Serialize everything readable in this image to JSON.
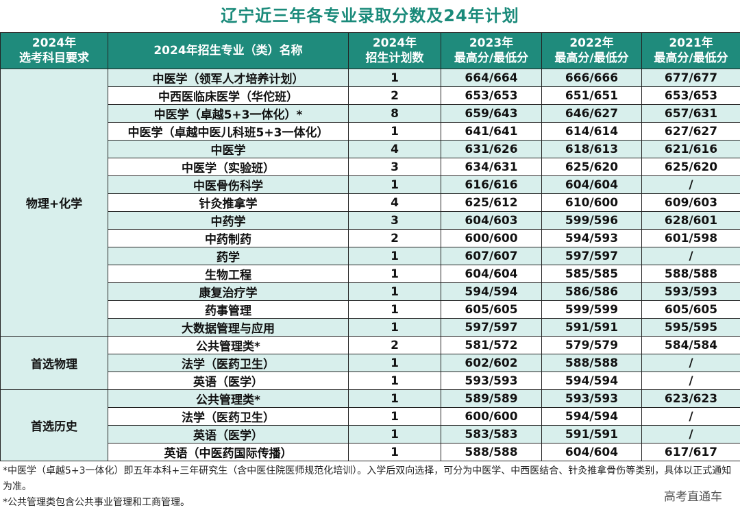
{
  "title": "辽宁近三年各专业录取分数及24年计划",
  "header": {
    "col1": [
      "2024年",
      "选考科目要求"
    ],
    "col2": "2024年招生专业（类）名称",
    "col3": [
      "2024年",
      "招生计划数"
    ],
    "col4": [
      "2023年",
      "最高分/最低分"
    ],
    "col5": [
      "2022年",
      "最高分/最低分"
    ],
    "col6": [
      "2021年",
      "最高分/最低分"
    ]
  },
  "groups": [
    {
      "requirement": "物理+化学",
      "rows": [
        {
          "major": "中医学（领军人才培养计划）",
          "plan": "1",
          "y2023": "664/664",
          "y2022": "666/666",
          "y2021": "677/677"
        },
        {
          "major": "中西医临床医学（华佗班）",
          "plan": "2",
          "y2023": "653/653",
          "y2022": "651/651",
          "y2021": "653/653"
        },
        {
          "major": "中医学（卓越5+3一体化）*",
          "plan": "8",
          "y2023": "659/643",
          "y2022": "646/627",
          "y2021": "657/631"
        },
        {
          "major": "中医学（卓越中医儿科班5+3一体化）",
          "plan": "1",
          "y2023": "641/641",
          "y2022": "614/614",
          "y2021": "627/627"
        },
        {
          "major": "中医学",
          "plan": "4",
          "y2023": "631/626",
          "y2022": "618/613",
          "y2021": "621/616"
        },
        {
          "major": "中医学（实验班）",
          "plan": "3",
          "y2023": "634/631",
          "y2022": "625/620",
          "y2021": "625/620"
        },
        {
          "major": "中医骨伤科学",
          "plan": "1",
          "y2023": "616/616",
          "y2022": "604/604",
          "y2021": "/"
        },
        {
          "major": "针灸推拿学",
          "plan": "4",
          "y2023": "625/612",
          "y2022": "610/600",
          "y2021": "609/603"
        },
        {
          "major": "中药学",
          "plan": "3",
          "y2023": "604/603",
          "y2022": "599/596",
          "y2021": "628/601"
        },
        {
          "major": "中药制药",
          "plan": "2",
          "y2023": "600/600",
          "y2022": "594/593",
          "y2021": "601/598"
        },
        {
          "major": "药学",
          "plan": "1",
          "y2023": "607/607",
          "y2022": "597/597",
          "y2021": "/"
        },
        {
          "major": "生物工程",
          "plan": "1",
          "y2023": "604/604",
          "y2022": "585/585",
          "y2021": "588/588"
        },
        {
          "major": "康复治疗学",
          "plan": "1",
          "y2023": "594/594",
          "y2022": "586/586",
          "y2021": "593/593"
        },
        {
          "major": "药事管理",
          "plan": "1",
          "y2023": "605/605",
          "y2022": "599/599",
          "y2021": "605/605"
        },
        {
          "major": "大数据管理与应用",
          "plan": "1",
          "y2023": "597/597",
          "y2022": "591/591",
          "y2021": "595/595"
        }
      ]
    },
    {
      "requirement": "首选物理",
      "rows": [
        {
          "major": "公共管理类*",
          "plan": "2",
          "y2023": "581/572",
          "y2022": "579/579",
          "y2021": "584/584"
        },
        {
          "major": "法学（医药卫生）",
          "plan": "1",
          "y2023": "602/602",
          "y2022": "588/588",
          "y2021": "/"
        },
        {
          "major": "英语（医学）",
          "plan": "1",
          "y2023": "593/593",
          "y2022": "594/594",
          "y2021": "/"
        }
      ]
    },
    {
      "requirement": "首选历史",
      "rows": [
        {
          "major": "公共管理类*",
          "plan": "1",
          "y2023": "589/589",
          "y2022": "593/593",
          "y2021": "623/623"
        },
        {
          "major": "法学（医药卫生）",
          "plan": "1",
          "y2023": "600/600",
          "y2022": "594/594",
          "y2021": "/"
        },
        {
          "major": "英语（医学）",
          "plan": "1",
          "y2023": "583/583",
          "y2022": "591/591",
          "y2021": "/"
        },
        {
          "major": "英语（中医药国际传播）",
          "plan": "1",
          "y2023": "588/588",
          "y2022": "604/604",
          "y2021": "617/617"
        }
      ]
    }
  ],
  "footer": {
    "note1": "*中医学（卓越5+3一体化）即五年本科+三年研究生（含中医住院医师规范化培训）。入学后双向选择，可分为中医学、中西医结合、针灸推拿骨伤等类别，具体以正式通知为准。",
    "note2": "*公共管理类包含公共事业管理和工商管理。"
  },
  "watermark": "高考直通车",
  "colors": {
    "title": "#1a8a7a",
    "header_bg": "#1f8b7c",
    "stripe": "#d8efec",
    "major_text": "#175f55"
  }
}
